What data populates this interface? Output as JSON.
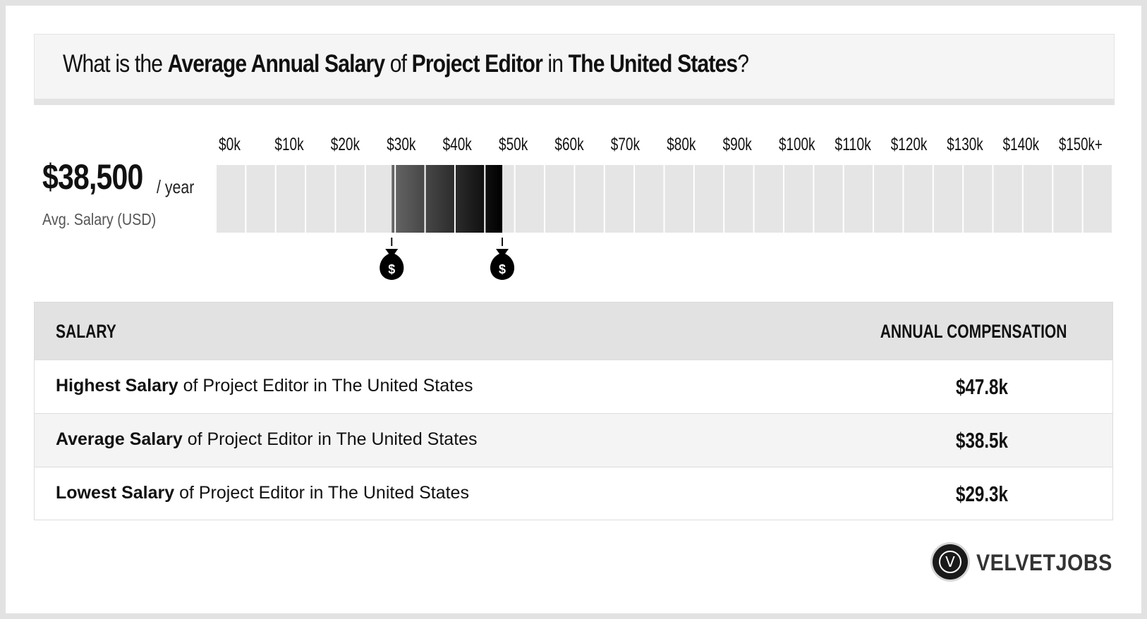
{
  "title": {
    "prefix": "What is the ",
    "metric": "Average Annual Salary",
    "of": " of ",
    "job": "Project Editor",
    "in": " in ",
    "location": "The United States",
    "suffix": "?"
  },
  "summary": {
    "value": "$38,500",
    "unit": "/ year",
    "label": "Avg. Salary (USD)"
  },
  "chart_data": {
    "type": "bar",
    "ticks": [
      "$0k",
      "$10k",
      "$20k",
      "$30k",
      "$40k",
      "$50k",
      "$60k",
      "$70k",
      "$80k",
      "$90k",
      "$100k",
      "$110k",
      "$120k",
      "$130k",
      "$140k",
      "$150k+"
    ],
    "xlim": [
      0,
      150
    ],
    "unit": "k USD",
    "range_low": 29.3,
    "range_high": 47.8,
    "average": 38.5,
    "marker_icon": "money-bag-icon",
    "colors": {
      "empty": "#e5e5e5",
      "fill_start": "#666666",
      "fill_end": "#000000"
    }
  },
  "table": {
    "header_left": "SALARY",
    "header_right": "ANNUAL COMPENSATION",
    "rows": [
      {
        "bold": "Highest Salary",
        "rest": " of Project Editor in The United States",
        "value": "$47.8k"
      },
      {
        "bold": "Average Salary",
        "rest": " of Project Editor in The United States",
        "value": "$38.5k"
      },
      {
        "bold": "Lowest Salary",
        "rest": " of Project Editor in The United States",
        "value": "$29.3k"
      }
    ]
  },
  "brand": {
    "initial": "V",
    "name": "VELVETJOBS"
  }
}
